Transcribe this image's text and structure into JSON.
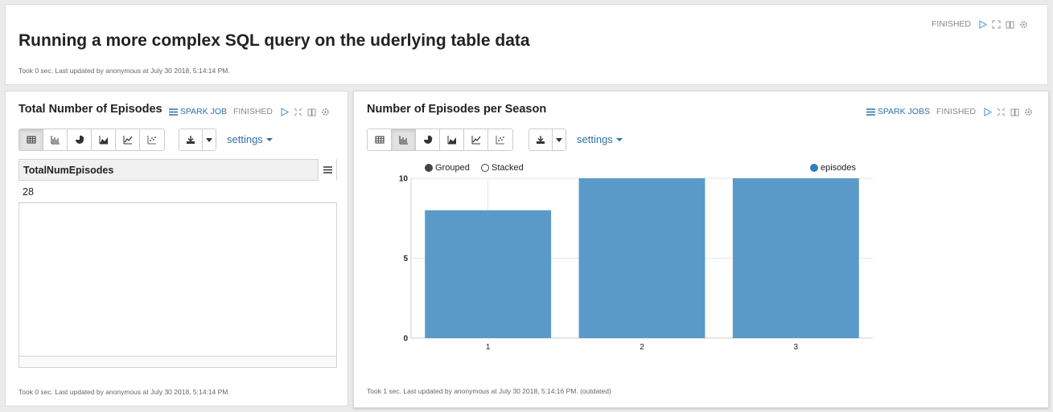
{
  "top": {
    "title": "Running a more complex SQL query on the uderlying table data",
    "status": "FINISHED",
    "footer": "Took 0 sec. Last updated by anonymous at July 30 2018, 5:14:14 PM."
  },
  "left": {
    "title": "Total Number of Episodes",
    "spark_label": "SPARK JOB",
    "status": "FINISHED",
    "settings_label": "settings",
    "table": {
      "header": "TotalNumEpisodes",
      "rows": [
        "28"
      ]
    },
    "footer": "Took 0 sec. Last updated by anonymous at July 30 2018, 5:14:14 PM."
  },
  "right": {
    "title": "Number of Episodes per Season",
    "spark_label": "SPARK JOBS",
    "status": "FINISHED",
    "settings_label": "settings",
    "legend": {
      "grouped": "Grouped",
      "stacked": "Stacked",
      "series": "episodes"
    },
    "footer": "Took 1 sec. Last updated by anonymous at July 30 2018, 5:14:16 PM. (outdated)"
  },
  "colors": {
    "bar": "#5b9ac8",
    "link": "#3071a9",
    "series_dot": "#2f7ebd"
  },
  "chart_data": {
    "type": "bar",
    "categories": [
      "1",
      "2",
      "3"
    ],
    "series": [
      {
        "name": "episodes",
        "values": [
          8,
          10,
          10
        ]
      }
    ],
    "ylim": [
      0,
      10
    ],
    "yticks": [
      "0",
      "5",
      "10"
    ],
    "xlabel": "",
    "ylabel": "",
    "grid": true,
    "legend": "top-right"
  }
}
